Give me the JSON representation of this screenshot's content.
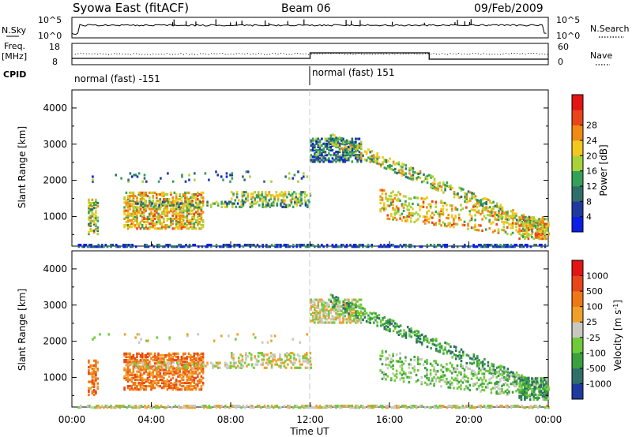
{
  "header": {
    "title": "Syowa East (fitACF)",
    "beam": "Beam 06",
    "date": "09/Feb/2009"
  },
  "status_panel": {
    "nsky_label": "N.Sky",
    "nsky_ticks": [
      "10^5",
      "10^0"
    ],
    "nsearch_label": "N.Search",
    "nsearch_ticks": [
      "10^5",
      "10^0"
    ],
    "freq_label": "Freq.",
    "freq_unit": "[MHz]",
    "freq_ticks": [
      "18",
      "8"
    ],
    "nave_label": "Nave",
    "nave_ticks": [
      "60",
      "0"
    ],
    "cpid_label": "CPID",
    "cpid_segments": [
      {
        "label": "normal (fast) -151",
        "start_hour": 0,
        "end_hour": 12
      },
      {
        "label": "normal (fast) 151",
        "start_hour": 12,
        "end_hour": 24
      }
    ]
  },
  "colors": {
    "power_scale": [
      "#0a1ee6",
      "#1e3a9e",
      "#2f6e6a",
      "#34a05a",
      "#a8d23a",
      "#f2c81e",
      "#f08a14",
      "#e8461a",
      "#e21414"
    ],
    "velocity_scale": [
      "#1e3a9e",
      "#2f6e6a",
      "#3aa040",
      "#6fcb3a",
      "#c8c8c0",
      "#f0a028",
      "#f07814",
      "#e8461a",
      "#e21414"
    ]
  },
  "chart_data": [
    {
      "type": "heatmap",
      "name": "power",
      "xlabel": "",
      "ylabel": "Slant Range [km]",
      "xlim": [
        0,
        24
      ],
      "ylim": [
        180,
        4500
      ],
      "yticks": [
        "1000",
        "2000",
        "3000",
        "4000"
      ],
      "colorbar_label": "Power [dB]",
      "colorbar_ticks": [
        "4",
        "8",
        "12",
        "16",
        "20",
        "24",
        "28"
      ],
      "colorbar_range": [
        0,
        32
      ]
    },
    {
      "type": "heatmap",
      "name": "velocity",
      "xlabel": "Time UT",
      "ylabel": "Slant Range [km]",
      "xlim": [
        0,
        24
      ],
      "ylim": [
        180,
        4500
      ],
      "xticks": [
        "00:00",
        "04:00",
        "08:00",
        "12:00",
        "16:00",
        "20:00",
        "00:00"
      ],
      "yticks": [
        "1000",
        "2000",
        "3000",
        "4000"
      ],
      "colorbar_label": "Velocity",
      "colorbar_unit": "[m s",
      "colorbar_unit_sup": "-1",
      "colorbar_unit_end": "]",
      "colorbar_ticks": [
        "1000",
        "500",
        "100",
        "25",
        "-25",
        "-100",
        "-500",
        "-1000"
      ]
    }
  ]
}
